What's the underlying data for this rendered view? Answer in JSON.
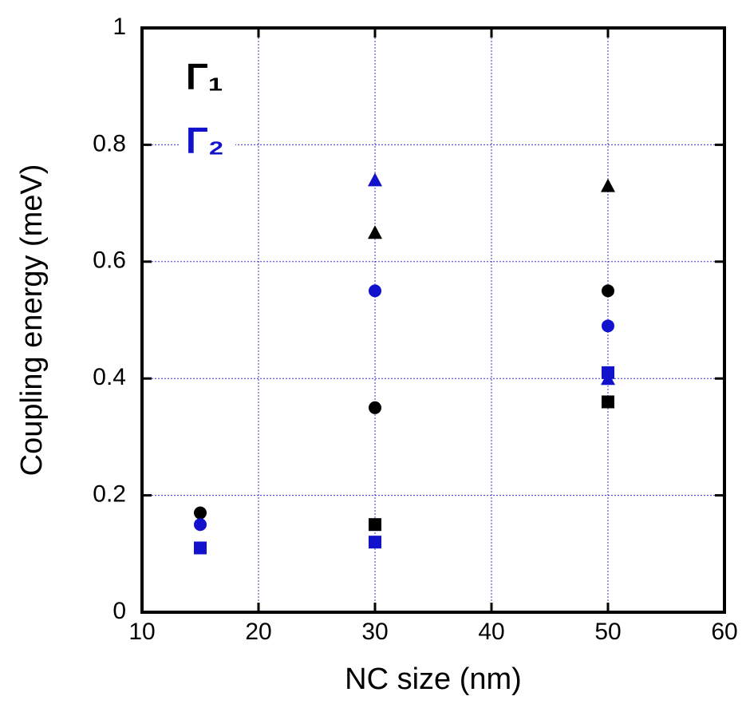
{
  "chart_data": {
    "type": "scatter",
    "xlabel": "NC size (nm)",
    "ylabel": "Coupling energy (meV)",
    "xlim": [
      10,
      60
    ],
    "xticks": [
      10,
      20,
      30,
      40,
      50,
      60
    ],
    "ylim": [
      0,
      1
    ],
    "yticks": [
      0,
      0.2,
      0.4,
      0.6,
      0.8,
      1
    ],
    "grid": true,
    "legend": "upper left",
    "series": [
      {
        "name": "Γ₁",
        "color": "#000000",
        "x": [
          15,
          30,
          50,
          30,
          50,
          30,
          50
        ],
        "values": [
          0.17,
          0.35,
          0.55,
          0.15,
          0.36,
          0.65,
          0.73
        ],
        "markers": [
          "circle",
          "circle",
          "circle",
          "square",
          "square",
          "triangle",
          "triangle"
        ]
      },
      {
        "name": "Γ₂",
        "color": "#1212cc",
        "x": [
          15,
          30,
          50,
          15,
          30,
          50,
          30,
          50
        ],
        "values": [
          0.15,
          0.55,
          0.49,
          0.11,
          0.12,
          0.41,
          0.74,
          0.4
        ],
        "markers": [
          "circle",
          "circle",
          "circle",
          "square",
          "square",
          "square",
          "triangle",
          "triangle"
        ]
      }
    ]
  }
}
